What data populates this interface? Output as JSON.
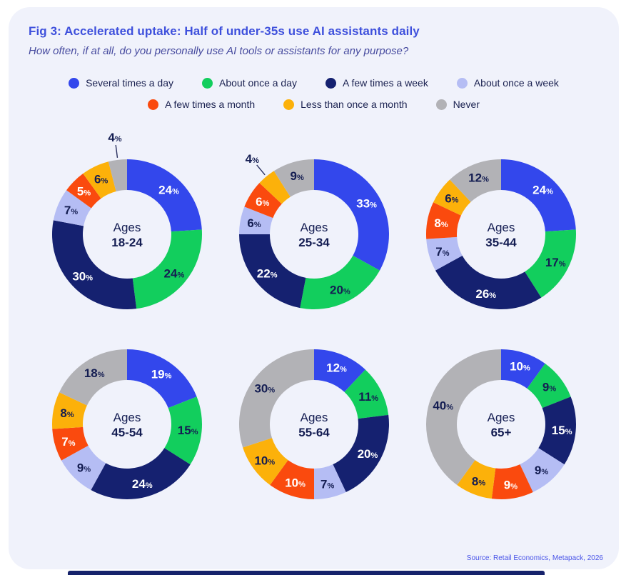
{
  "header": {
    "title": "Fig 3: Accelerated uptake: Half of under-35s use AI assistants daily",
    "subtitle": "How often, if at all, do you personally use AI tools or assistants for any purpose?"
  },
  "footer": {
    "source": "Source: Retail Economics, Metapack, 2026"
  },
  "colors": {
    "card_bg": "#f0f2fb",
    "page_bg": "#ffffff",
    "title": "#3e50dc",
    "subtitle": "#474b9f",
    "dark_text": "#141d52",
    "leader_line": "#2a3160",
    "bottom_bar": "#16226b",
    "source_text": "#4a55e8"
  },
  "chart_data": {
    "type": "pie",
    "variant": "donut-small-multiples",
    "question": "How often, if at all, do you personally use AI tools or assistants for any purpose?",
    "unit": "%",
    "legend_position": "top",
    "series": [
      {
        "name": "Several times a day",
        "color": "#3347ec",
        "label_color": "#ffffff"
      },
      {
        "name": "About once a day",
        "color": "#12ce5d",
        "label_color": "#141d52"
      },
      {
        "name": "A few times a week",
        "color": "#152170",
        "label_color": "#ffffff"
      },
      {
        "name": "About once a week",
        "color": "#b5bdf4",
        "label_color": "#141d52"
      },
      {
        "name": "A few times a month",
        "color": "#fa4a0e",
        "label_color": "#ffffff"
      },
      {
        "name": "Less than once a month",
        "color": "#fcb10a",
        "label_color": "#141d52"
      },
      {
        "name": "Never",
        "color": "#b2b2b6",
        "label_color": "#141d52"
      }
    ],
    "charts": [
      {
        "center_line1": "Ages",
        "center_line2": "18-24",
        "values": [
          24,
          24,
          30,
          7,
          5,
          6,
          4
        ]
      },
      {
        "center_line1": "Ages",
        "center_line2": "25-34",
        "values": [
          33,
          20,
          22,
          6,
          6,
          4,
          9
        ]
      },
      {
        "center_line1": "Ages",
        "center_line2": "35-44",
        "values": [
          24,
          17,
          26,
          7,
          8,
          6,
          12
        ]
      },
      {
        "center_line1": "Ages",
        "center_line2": "45-54",
        "values": [
          19,
          15,
          24,
          9,
          7,
          8,
          18
        ]
      },
      {
        "center_line1": "Ages",
        "center_line2": "55-64",
        "values": [
          12,
          11,
          20,
          7,
          10,
          10,
          30
        ]
      },
      {
        "center_line1": "Ages",
        "center_line2": "65+",
        "values": [
          10,
          9,
          15,
          9,
          9,
          8,
          40
        ]
      }
    ]
  }
}
